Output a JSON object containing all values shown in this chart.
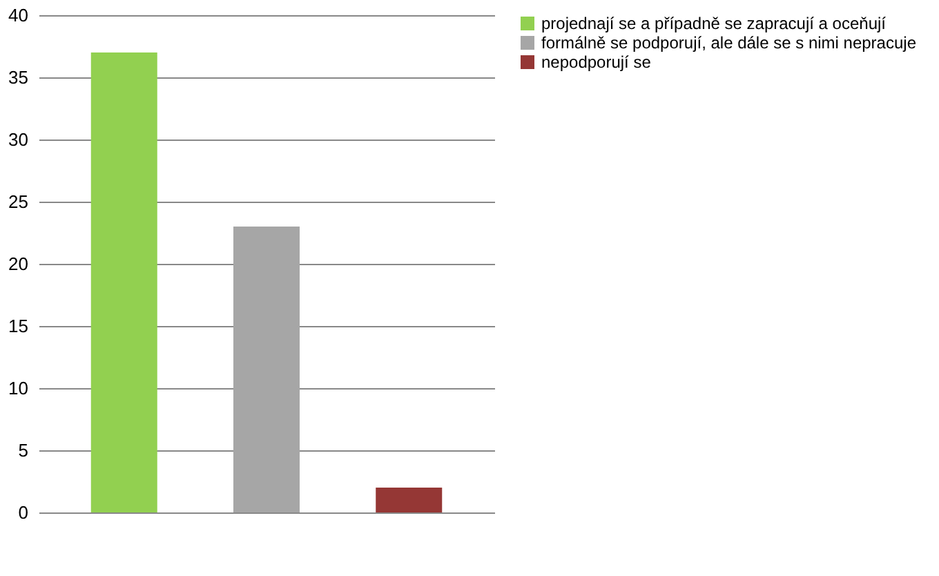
{
  "chart_data": {
    "type": "bar",
    "categories": [
      null
    ],
    "series": [
      {
        "name": "projednají se a případně se zapracují a oceňují",
        "color": "#92d050",
        "values": [
          37
        ]
      },
      {
        "name": "formálně se podporují, ale dále se s nimi nepracuje",
        "color": "#a6a6a6",
        "values": [
          23
        ]
      },
      {
        "name": "nepodporují se",
        "color": "#953735",
        "values": [
          2
        ]
      }
    ],
    "ylim": [
      0,
      40
    ],
    "yticks": [
      0,
      5,
      10,
      15,
      20,
      25,
      30,
      35,
      40
    ],
    "grid": "y",
    "legend": "right",
    "tick_labels": "y"
  }
}
